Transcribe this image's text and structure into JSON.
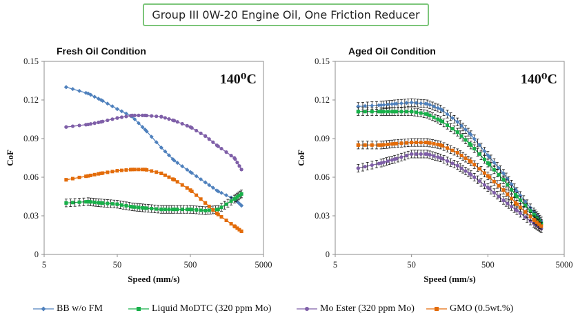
{
  "page_title": "Group III 0W-20 Engine Oil, One Friction Reducer",
  "series_styles": [
    {
      "name": "BB w/o FM",
      "color": "#4f81bd",
      "marker": "diamond"
    },
    {
      "name": "Liquid MoDTC (320 ppm Mo)",
      "color": "#18b04a",
      "marker": "square"
    },
    {
      "name": "Mo Ester (320 ppm Mo)",
      "color": "#7f5fa8",
      "marker": "circle"
    },
    {
      "name": "GMO (0.5wt.%)",
      "color": "#e36c0a",
      "marker": "square"
    }
  ],
  "chart_data": [
    {
      "type": "line",
      "title": "Fresh Oil Condition",
      "annotation": "140⁰C",
      "xlabel": "Speed (mm/s)",
      "ylabel": "CoF",
      "xscale": "log",
      "xlim": [
        5,
        5000
      ],
      "ylim": [
        0,
        0.15
      ],
      "xticks": [
        "5",
        "50",
        "500",
        "5000"
      ],
      "yticks": [
        "0",
        "0.03",
        "0.06",
        "0.09",
        "0.12",
        "0.15"
      ],
      "x": [
        10,
        20,
        30,
        50,
        80,
        120,
        200,
        300,
        500,
        800,
        1200,
        2000,
        2500
      ],
      "series": [
        {
          "name": "BB w/o FM",
          "values": [
            0.13,
            0.125,
            0.12,
            0.113,
            0.107,
            0.097,
            0.083,
            0.073,
            0.064,
            0.056,
            0.049,
            0.043,
            0.038
          ]
        },
        {
          "name": "Liquid MoDTC (320 ppm Mo)",
          "values": [
            0.04,
            0.041,
            0.04,
            0.039,
            0.037,
            0.036,
            0.035,
            0.035,
            0.035,
            0.034,
            0.035,
            0.043,
            0.047
          ]
        },
        {
          "name": "Mo Ester (320 ppm Mo)",
          "values": [
            0.099,
            0.101,
            0.103,
            0.106,
            0.108,
            0.108,
            0.107,
            0.104,
            0.099,
            0.092,
            0.084,
            0.075,
            0.066
          ]
        },
        {
          "name": "GMO (0.5wt.%)",
          "values": [
            0.058,
            0.061,
            0.063,
            0.065,
            0.066,
            0.066,
            0.063,
            0.058,
            0.05,
            0.04,
            0.031,
            0.022,
            0.018
          ]
        }
      ],
      "legend": "bottom",
      "grid": false
    },
    {
      "type": "line",
      "title": "Aged Oil Condition",
      "annotation": "140⁰C",
      "xlabel": "Speed (mm/s)",
      "ylabel": "CoF",
      "xscale": "log",
      "xlim": [
        5,
        5000
      ],
      "ylim": [
        0,
        0.15
      ],
      "xticks": [
        "5",
        "50",
        "500",
        "5000"
      ],
      "yticks": [
        "0",
        "0.03",
        "0.06",
        "0.09",
        "0.12",
        "0.15"
      ],
      "x": [
        10,
        20,
        30,
        50,
        80,
        120,
        200,
        300,
        500,
        800,
        1200,
        2000,
        2500
      ],
      "series": [
        {
          "name": "BB w/o FM",
          "values": [
            0.115,
            0.116,
            0.117,
            0.118,
            0.117,
            0.113,
            0.103,
            0.093,
            0.077,
            0.063,
            0.049,
            0.033,
            0.026
          ]
        },
        {
          "name": "Liquid MoDTC (320 ppm Mo)",
          "values": [
            0.111,
            0.111,
            0.111,
            0.111,
            0.109,
            0.104,
            0.095,
            0.085,
            0.071,
            0.058,
            0.045,
            0.031,
            0.024
          ]
        },
        {
          "name": "Mo Ester (320 ppm Mo)",
          "values": [
            0.067,
            0.071,
            0.074,
            0.078,
            0.078,
            0.075,
            0.069,
            0.062,
            0.052,
            0.042,
            0.034,
            0.024,
            0.02
          ]
        },
        {
          "name": "GMO (0.5wt.%)",
          "values": [
            0.085,
            0.085,
            0.086,
            0.087,
            0.087,
            0.085,
            0.079,
            0.072,
            0.061,
            0.05,
            0.039,
            0.027,
            0.022
          ]
        }
      ],
      "legend": "bottom",
      "grid": false
    }
  ]
}
